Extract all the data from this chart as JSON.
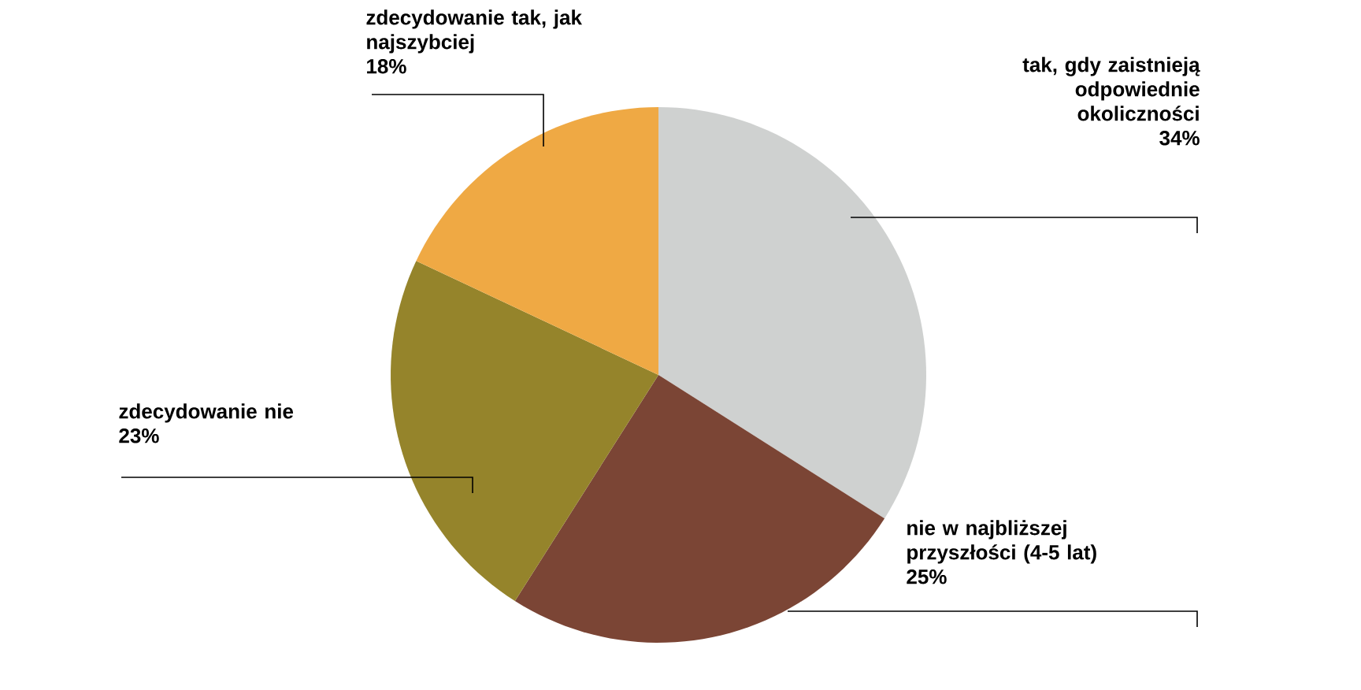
{
  "chart_data": {
    "type": "pie",
    "categories": [
      "tak, gdy zaistnieją odpowiednie okoliczności",
      "nie w najbliższej przyszłości (4-5 lat)",
      "zdecydowanie nie",
      "zdecydowanie tak, jak najszybciej"
    ],
    "values": [
      34,
      25,
      23,
      18
    ],
    "value_labels": [
      "34%",
      "25%",
      "23%",
      "18%"
    ],
    "colors": [
      "#cfd1d0",
      "#7b4535",
      "#95842b",
      "#efa944"
    ]
  }
}
